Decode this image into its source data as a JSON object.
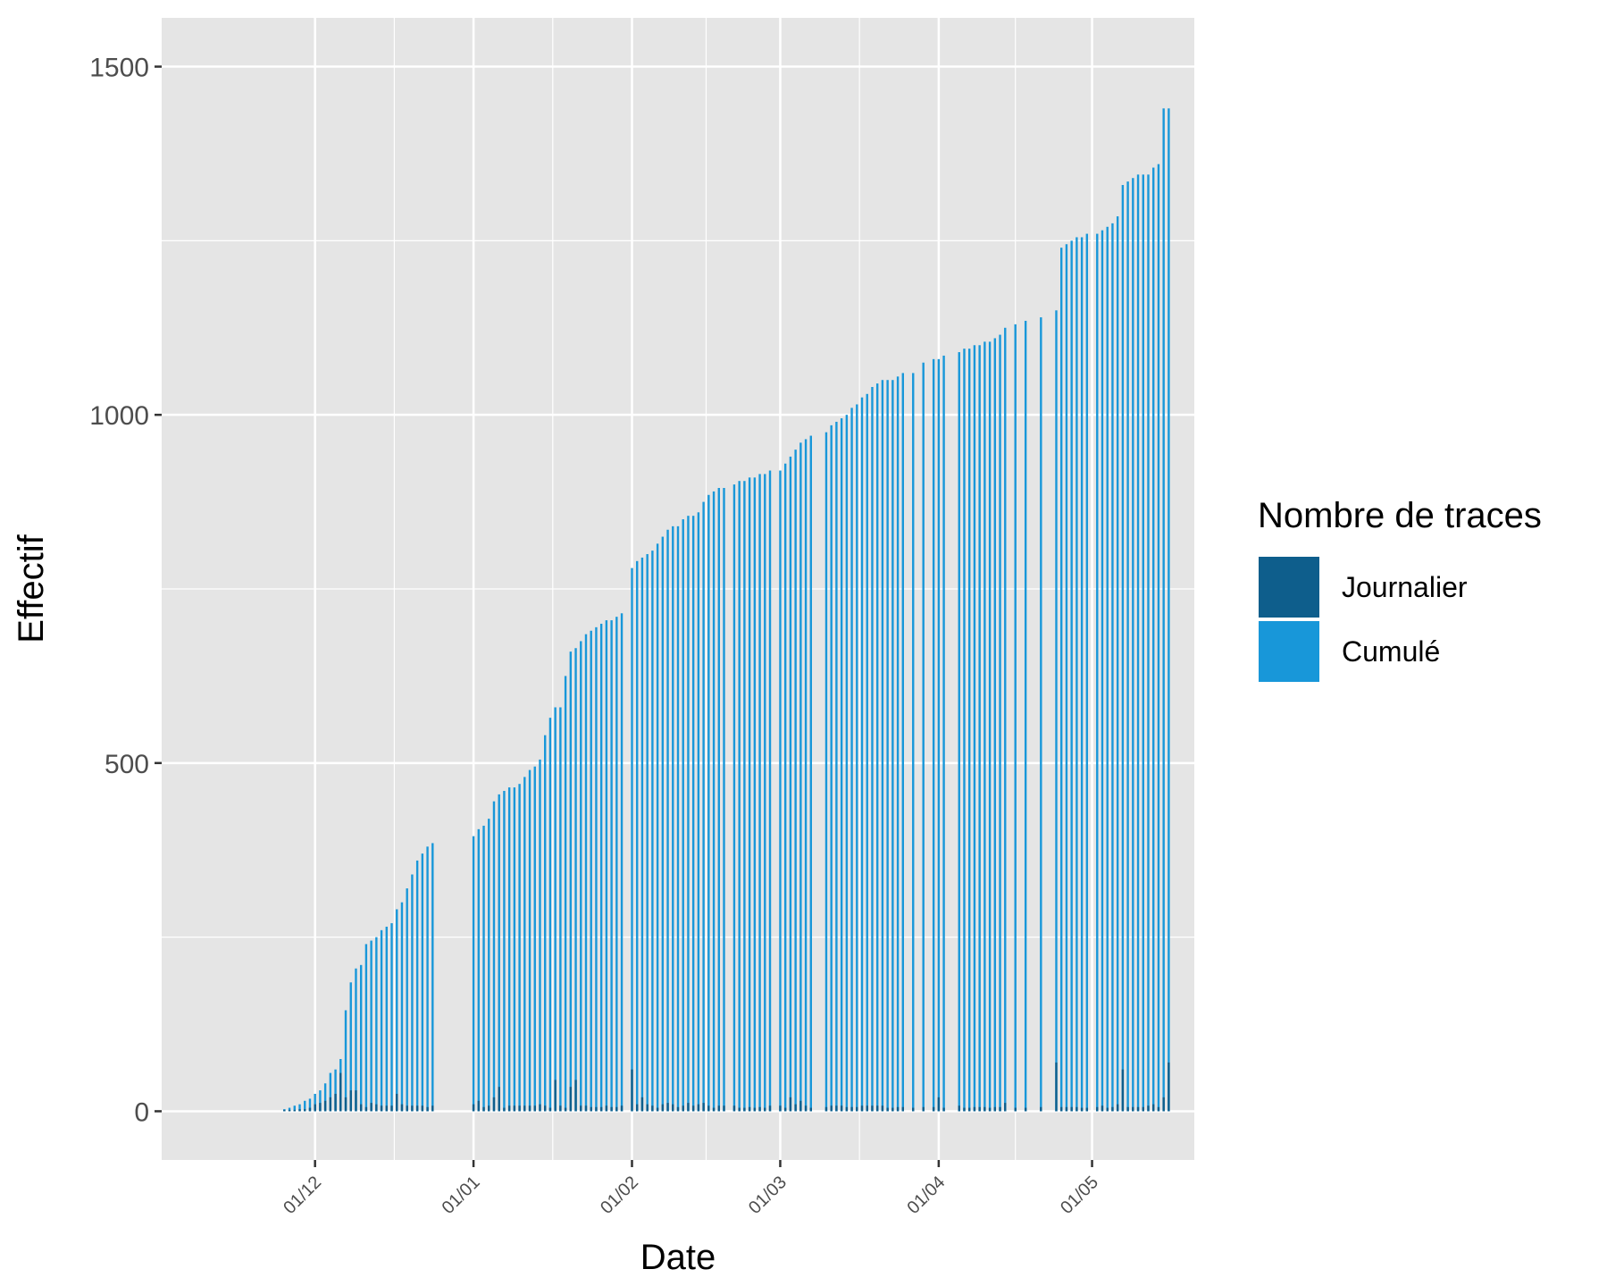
{
  "chart_data": {
    "type": "bar",
    "xlabel": "Date",
    "ylabel": "Effectif",
    "x_type": "date",
    "xlim": [
      "2019-11-01",
      "2020-05-21"
    ],
    "ylim": [
      -70,
      1570
    ],
    "y_ticks": [
      0,
      500,
      1000,
      1500
    ],
    "x_ticks": [
      {
        "date": "2019-12-01",
        "label": "01/12"
      },
      {
        "date": "2020-01-01",
        "label": "01/01"
      },
      {
        "date": "2020-02-01",
        "label": "01/02"
      },
      {
        "date": "2020-03-01",
        "label": "01/03"
      },
      {
        "date": "2020-04-01",
        "label": "01/04"
      },
      {
        "date": "2020-05-01",
        "label": "01/05"
      }
    ],
    "grid": true,
    "legend": {
      "title": "Nombre de traces",
      "position": "right",
      "entries": [
        {
          "label": "Journalier",
          "color": "#0e5e8c"
        },
        {
          "label": "Cumulé",
          "color": "#1897d9"
        }
      ]
    },
    "dates": [
      "2019-11-25",
      "2019-11-26",
      "2019-11-27",
      "2019-11-28",
      "2019-11-29",
      "2019-11-30",
      "2019-12-01",
      "2019-12-02",
      "2019-12-03",
      "2019-12-04",
      "2019-12-05",
      "2019-12-06",
      "2019-12-07",
      "2019-12-08",
      "2019-12-09",
      "2019-12-10",
      "2019-12-11",
      "2019-12-12",
      "2019-12-13",
      "2019-12-14",
      "2019-12-15",
      "2019-12-16",
      "2019-12-17",
      "2019-12-18",
      "2019-12-19",
      "2019-12-20",
      "2019-12-21",
      "2019-12-22",
      "2019-12-23",
      "2019-12-24",
      "2020-01-01",
      "2020-01-02",
      "2020-01-03",
      "2020-01-04",
      "2020-01-05",
      "2020-01-06",
      "2020-01-07",
      "2020-01-08",
      "2020-01-09",
      "2020-01-10",
      "2020-01-11",
      "2020-01-12",
      "2020-01-13",
      "2020-01-14",
      "2020-01-15",
      "2020-01-16",
      "2020-01-17",
      "2020-01-18",
      "2020-01-19",
      "2020-01-20",
      "2020-01-21",
      "2020-01-22",
      "2020-01-23",
      "2020-01-24",
      "2020-01-25",
      "2020-01-26",
      "2020-01-27",
      "2020-01-28",
      "2020-01-29",
      "2020-01-30",
      "2020-02-01",
      "2020-02-02",
      "2020-02-03",
      "2020-02-04",
      "2020-02-05",
      "2020-02-06",
      "2020-02-07",
      "2020-02-08",
      "2020-02-09",
      "2020-02-10",
      "2020-02-11",
      "2020-02-12",
      "2020-02-13",
      "2020-02-14",
      "2020-02-15",
      "2020-02-16",
      "2020-02-17",
      "2020-02-18",
      "2020-02-19",
      "2020-02-21",
      "2020-02-22",
      "2020-02-23",
      "2020-02-24",
      "2020-02-25",
      "2020-02-26",
      "2020-02-27",
      "2020-02-28",
      "2020-03-01",
      "2020-03-02",
      "2020-03-03",
      "2020-03-04",
      "2020-03-05",
      "2020-03-06",
      "2020-03-07",
      "2020-03-10",
      "2020-03-11",
      "2020-03-12",
      "2020-03-13",
      "2020-03-14",
      "2020-03-15",
      "2020-03-16",
      "2020-03-17",
      "2020-03-18",
      "2020-03-19",
      "2020-03-20",
      "2020-03-21",
      "2020-03-22",
      "2020-03-23",
      "2020-03-24",
      "2020-03-25",
      "2020-03-27",
      "2020-03-29",
      "2020-03-31",
      "2020-04-01",
      "2020-04-02",
      "2020-04-05",
      "2020-04-06",
      "2020-04-07",
      "2020-04-08",
      "2020-04-09",
      "2020-04-10",
      "2020-04-11",
      "2020-04-12",
      "2020-04-13",
      "2020-04-14",
      "2020-04-16",
      "2020-04-18",
      "2020-04-21",
      "2020-04-24",
      "2020-04-25",
      "2020-04-26",
      "2020-04-27",
      "2020-04-28",
      "2020-04-29",
      "2020-04-30",
      "2020-05-02",
      "2020-05-03",
      "2020-05-04",
      "2020-05-05",
      "2020-05-06",
      "2020-05-07",
      "2020-05-08",
      "2020-05-09",
      "2020-05-10",
      "2020-05-11",
      "2020-05-12",
      "2020-05-13",
      "2020-05-14",
      "2020-05-15",
      "2020-05-16"
    ],
    "series": [
      {
        "name": "Journalier",
        "values": [
          2,
          2,
          2,
          3,
          3,
          5,
          10,
          12,
          15,
          20,
          25,
          55,
          20,
          30,
          30,
          10,
          6,
          12,
          10,
          8,
          8,
          8,
          25,
          10,
          8,
          8,
          8,
          8,
          6,
          8,
          10,
          15,
          6,
          8,
          20,
          35,
          5,
          8,
          8,
          8,
          8,
          8,
          8,
          10,
          8,
          5,
          45,
          8,
          5,
          35,
          45,
          8,
          8,
          6,
          6,
          6,
          8,
          6,
          6,
          8,
          60,
          10,
          20,
          10,
          8,
          5,
          10,
          12,
          10,
          6,
          8,
          12,
          8,
          10,
          12,
          8,
          5,
          8,
          8,
          8,
          5,
          5,
          6,
          5,
          6,
          5,
          8,
          8,
          5,
          20,
          10,
          15,
          8,
          5,
          6,
          8,
          8,
          8,
          6,
          6,
          6,
          8,
          8,
          8,
          8,
          8,
          5,
          5,
          6,
          6,
          5,
          6,
          6,
          20,
          5,
          8,
          5,
          5,
          6,
          6,
          6,
          5,
          6,
          6,
          12,
          5,
          5,
          6,
          70,
          6,
          6,
          6,
          6,
          5,
          5,
          6,
          8,
          5,
          6,
          10,
          60,
          6,
          6,
          6,
          6,
          8,
          10,
          6,
          20,
          70
        ]
      },
      {
        "name": "Cumulé",
        "values": [
          3,
          5,
          8,
          10,
          15,
          18,
          25,
          30,
          40,
          55,
          60,
          75,
          145,
          185,
          205,
          210,
          240,
          245,
          250,
          260,
          265,
          270,
          290,
          300,
          320,
          340,
          360,
          370,
          380,
          385,
          395,
          405,
          410,
          420,
          445,
          455,
          460,
          465,
          465,
          470,
          480,
          490,
          495,
          505,
          540,
          565,
          580,
          580,
          625,
          660,
          665,
          675,
          685,
          690,
          695,
          700,
          705,
          705,
          710,
          715,
          780,
          790,
          795,
          800,
          805,
          815,
          825,
          835,
          840,
          840,
          850,
          855,
          855,
          860,
          875,
          885,
          890,
          895,
          895,
          900,
          905,
          905,
          910,
          910,
          915,
          915,
          920,
          920,
          930,
          940,
          950,
          960,
          965,
          970,
          975,
          985,
          990,
          995,
          1000,
          1010,
          1015,
          1025,
          1030,
          1040,
          1045,
          1050,
          1050,
          1050,
          1055,
          1060,
          1060,
          1075,
          1080,
          1080,
          1085,
          1090,
          1095,
          1095,
          1100,
          1100,
          1105,
          1105,
          1110,
          1115,
          1125,
          1130,
          1135,
          1140,
          1150,
          1240,
          1245,
          1250,
          1255,
          1255,
          1260,
          1260,
          1265,
          1270,
          1275,
          1285,
          1330,
          1335,
          1340,
          1345,
          1345,
          1345,
          1355,
          1360,
          1440,
          1440
        ]
      }
    ]
  }
}
